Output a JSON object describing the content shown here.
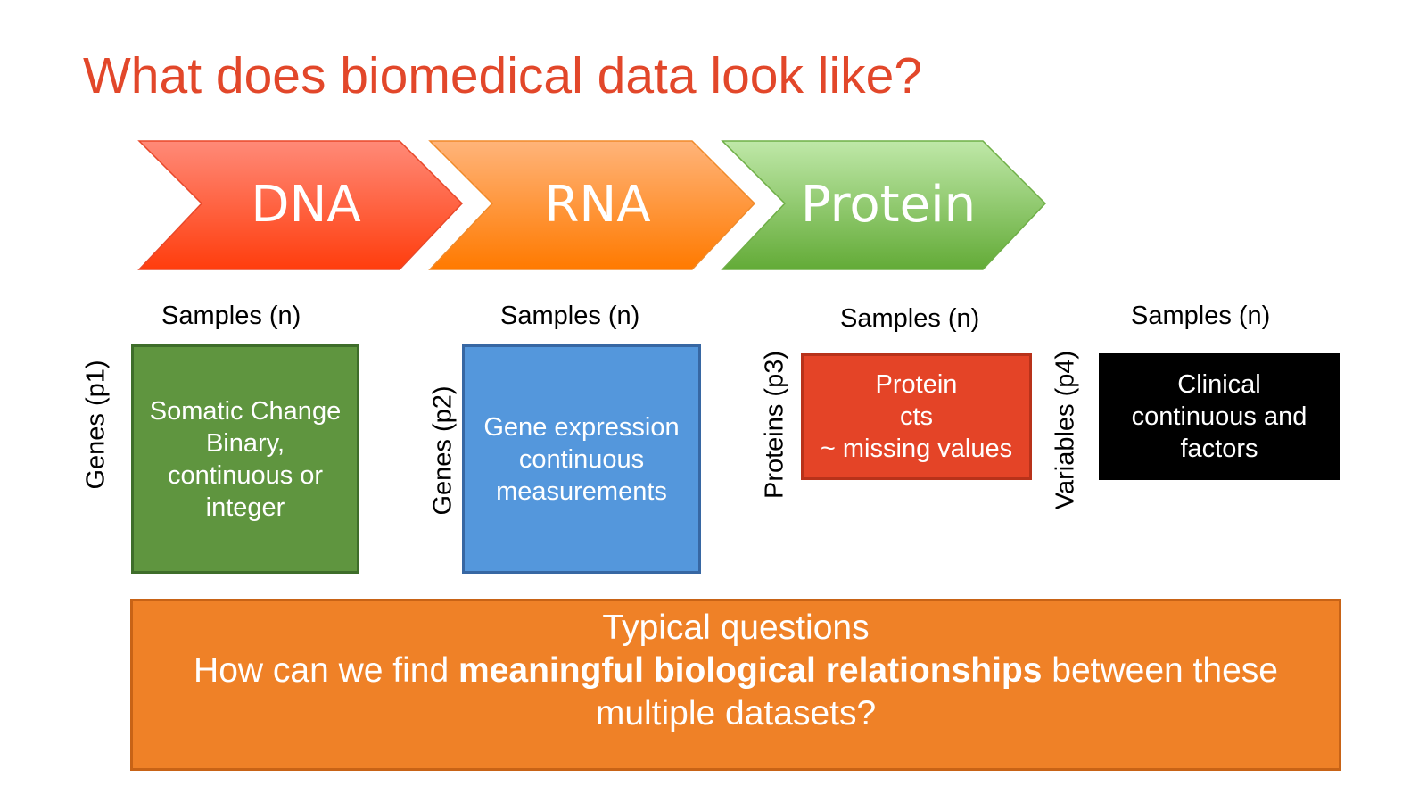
{
  "title": "What does biomedical data look like?",
  "chevrons": [
    {
      "label": "DNA",
      "color_top": "#ff8a78",
      "color_bottom": "#ff3d0d"
    },
    {
      "label": "RNA",
      "color_top": "#ffb47a",
      "color_bottom": "#ff7a00"
    },
    {
      "label": "Protein",
      "color_top": "#bfe8a8",
      "color_bottom": "#63ab37"
    }
  ],
  "datasets": [
    {
      "samples": "Samples (n)",
      "axis": "Genes (p1)",
      "lines": [
        "Somatic Change",
        "Binary,",
        "continuous or",
        "integer"
      ],
      "color": "#5f953f"
    },
    {
      "samples": "Samples (n)",
      "axis": "Genes (p2)",
      "lines": [
        "Gene expression",
        "continuous",
        "measurements"
      ],
      "color": "#5497dc"
    },
    {
      "samples": "Samples (n)",
      "axis": "Proteins (p3)",
      "lines": [
        "Protein",
        "cts",
        "~ missing values"
      ],
      "color": "#e44427"
    },
    {
      "samples": "Samples (n)",
      "axis": "Variables (p4)",
      "lines": [
        "Clinical",
        "continuous and",
        "factors"
      ],
      "color": "#000000"
    }
  ],
  "questions": {
    "heading": "Typical questions",
    "prefix": "How can we find ",
    "emphasis": "meaningful biological relationships",
    "suffix": " between these",
    "line3": "multiple datasets?",
    "color": "#ef8127"
  }
}
